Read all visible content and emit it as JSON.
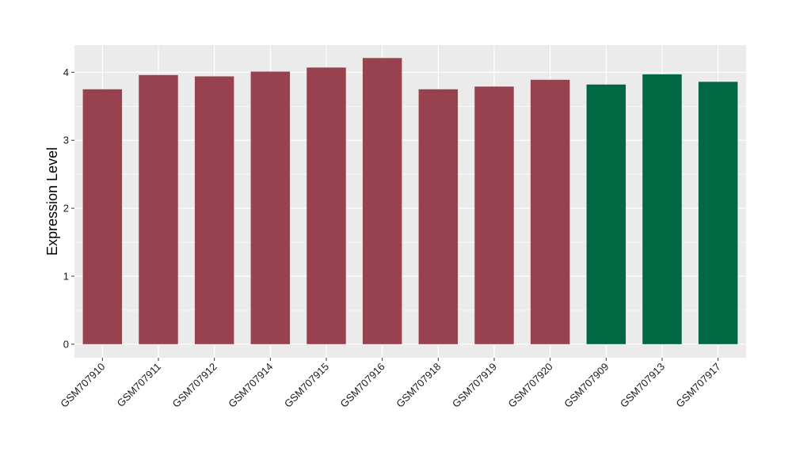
{
  "chart_data": {
    "type": "bar",
    "title": "",
    "xlabel": "",
    "ylabel": "Expression Level",
    "ylim": [
      -0.2,
      4.4
    ],
    "yticks": [
      0,
      1,
      2,
      3,
      4
    ],
    "grid": true,
    "legend": "none",
    "categories": [
      "GSM707910",
      "GSM707911",
      "GSM707912",
      "GSM707914",
      "GSM707915",
      "GSM707916",
      "GSM707918",
      "GSM707919",
      "GSM707920",
      "GSM707909",
      "GSM707913",
      "GSM707917"
    ],
    "values": [
      3.75,
      3.96,
      3.94,
      4.01,
      4.07,
      4.21,
      3.75,
      3.79,
      3.89,
      3.82,
      3.97,
      3.86
    ],
    "groups": [
      "a",
      "a",
      "a",
      "a",
      "a",
      "a",
      "a",
      "a",
      "a",
      "b",
      "b",
      "b"
    ],
    "group_colors": {
      "a": "#99424f",
      "b": "#006743"
    },
    "panel_background": "#ebebeb",
    "gridline_color": "#ffffff"
  }
}
